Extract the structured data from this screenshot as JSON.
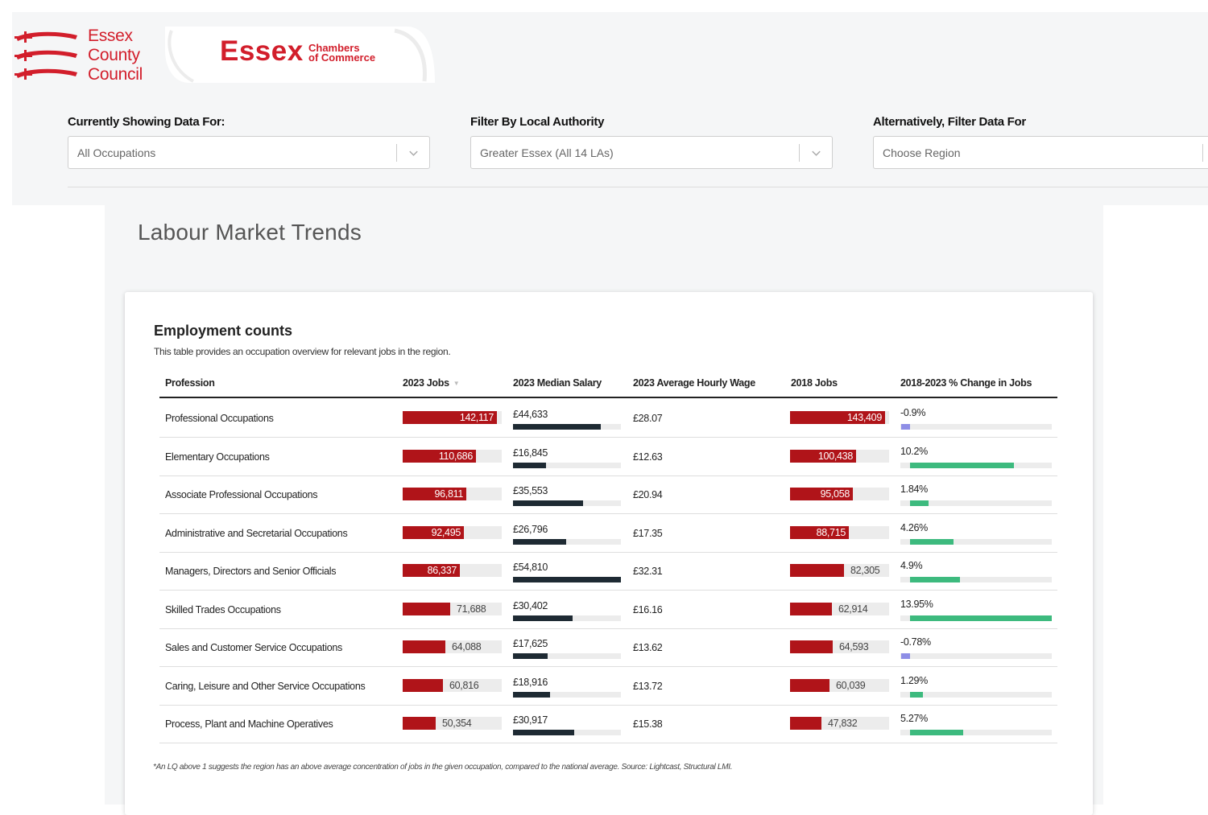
{
  "brand": {
    "ecc_lines": [
      "Essex",
      "County",
      "Council"
    ],
    "chamber_name": "Essex",
    "chamber_sub_lines": [
      "Chambers",
      "of Commerce"
    ],
    "red": "#d21e2b"
  },
  "filters": [
    {
      "label": "Currently Showing Data For:",
      "value": "All Occupations"
    },
    {
      "label": "Filter By Local Authority",
      "value": "Greater Essex (All 14 LAs)"
    },
    {
      "label": "Alternatively, Filter Data For",
      "placeholder": "Choose Region"
    }
  ],
  "page": {
    "title": "Labour Market Trends"
  },
  "card": {
    "title": "Employment counts",
    "description": "This table provides an occupation overview for relevant jobs in the region.",
    "footnote": "*An LQ above 1 suggests the region has an above average concentration of jobs in the given occupation, compared to the national average. Source: Lightcast, Structural LMI."
  },
  "table": {
    "headers": [
      "Profession",
      "2023 Jobs",
      "2023 Median Salary",
      "2023 Average Hourly Wage",
      "2018 Jobs",
      "2018-2023 % Change in Jobs"
    ],
    "colors": {
      "jobs_bar": "#b01419",
      "salary_bar": "#1e2a33",
      "pos_change": "#3dba7e",
      "neg_change": "#8e8ee6"
    },
    "rows": [
      {
        "profession": "Professional Occupations",
        "jobs_2023": 142117,
        "jobs_2023_label": "142,117",
        "salary": "£44,633",
        "salary_value": 44633,
        "hourly": "£28.07",
        "jobs_2018": 143409,
        "jobs_2018_label": "143,409",
        "change": "-0.9%",
        "change_value": -0.9
      },
      {
        "profession": "Elementary Occupations",
        "jobs_2023": 110686,
        "jobs_2023_label": "110,686",
        "salary": "£16,845",
        "salary_value": 16845,
        "hourly": "£12.63",
        "jobs_2018": 100438,
        "jobs_2018_label": "100,438",
        "change": "10.2%",
        "change_value": 10.2
      },
      {
        "profession": "Associate Professional Occupations",
        "jobs_2023": 96811,
        "jobs_2023_label": "96,811",
        "salary": "£35,553",
        "salary_value": 35553,
        "hourly": "£20.94",
        "jobs_2018": 95058,
        "jobs_2018_label": "95,058",
        "change": "1.84%",
        "change_value": 1.84
      },
      {
        "profession": "Administrative and Secretarial Occupations",
        "jobs_2023": 92495,
        "jobs_2023_label": "92,495",
        "salary": "£26,796",
        "salary_value": 26796,
        "hourly": "£17.35",
        "jobs_2018": 88715,
        "jobs_2018_label": "88,715",
        "change": "4.26%",
        "change_value": 4.26
      },
      {
        "profession": "Managers, Directors and Senior Officials",
        "jobs_2023": 86337,
        "jobs_2023_label": "86,337",
        "salary": "£54,810",
        "salary_value": 54810,
        "hourly": "£32.31",
        "jobs_2018": 82305,
        "jobs_2018_label": "82,305",
        "change": "4.9%",
        "change_value": 4.9
      },
      {
        "profession": "Skilled Trades Occupations",
        "jobs_2023": 71688,
        "jobs_2023_label": "71,688",
        "salary": "£30,402",
        "salary_value": 30402,
        "hourly": "£16.16",
        "jobs_2018": 62914,
        "jobs_2018_label": "62,914",
        "change": "13.95%",
        "change_value": 13.95
      },
      {
        "profession": "Sales and Customer Service Occupations",
        "jobs_2023": 64088,
        "jobs_2023_label": "64,088",
        "salary": "£17,625",
        "salary_value": 17625,
        "hourly": "£13.62",
        "jobs_2018": 64593,
        "jobs_2018_label": "64,593",
        "change": "-0.78%",
        "change_value": -0.78
      },
      {
        "profession": "Caring, Leisure and Other Service Occupations",
        "jobs_2023": 60816,
        "jobs_2023_label": "60,816",
        "salary": "£18,916",
        "salary_value": 18916,
        "hourly": "£13.72",
        "jobs_2018": 60039,
        "jobs_2018_label": "60,039",
        "change": "1.29%",
        "change_value": 1.29
      },
      {
        "profession": "Process, Plant and Machine Operatives",
        "jobs_2023": 50354,
        "jobs_2023_label": "50,354",
        "salary": "£30,917",
        "salary_value": 30917,
        "hourly": "£15.38",
        "jobs_2018": 47832,
        "jobs_2018_label": "47,832",
        "change": "5.27%",
        "change_value": 5.27
      }
    ]
  }
}
